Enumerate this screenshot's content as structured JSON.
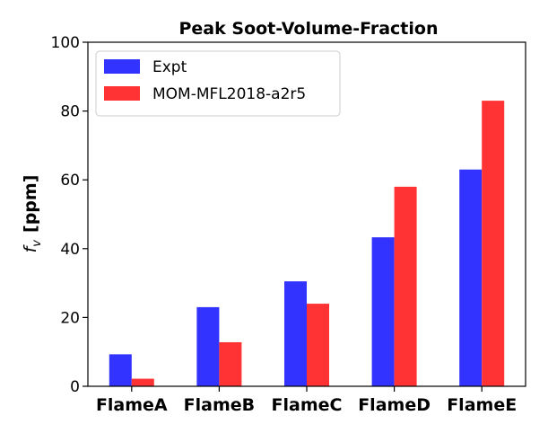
{
  "chart_data": {
    "type": "bar",
    "title": "Peak Soot-Volume-Fraction",
    "xlabel": "",
    "ylabel": {
      "symbol": "f",
      "subscript": "v",
      "unit": "[ppm]"
    },
    "categories": [
      "FlameA",
      "FlameB",
      "FlameC",
      "FlameD",
      "FlameE"
    ],
    "series": [
      {
        "name": "Expt",
        "color": "#3333ff",
        "values": [
          9.3,
          23.0,
          30.5,
          43.3,
          63.0
        ]
      },
      {
        "name": "MOM-MFL2018-a2r5",
        "color": "#ff3333",
        "values": [
          2.2,
          12.8,
          24.0,
          58.0,
          83.0
        ]
      }
    ],
    "ylim": [
      0,
      100
    ],
    "yticks": [
      0,
      20,
      40,
      60,
      80,
      100
    ],
    "grid": false,
    "legend": "top-left"
  }
}
